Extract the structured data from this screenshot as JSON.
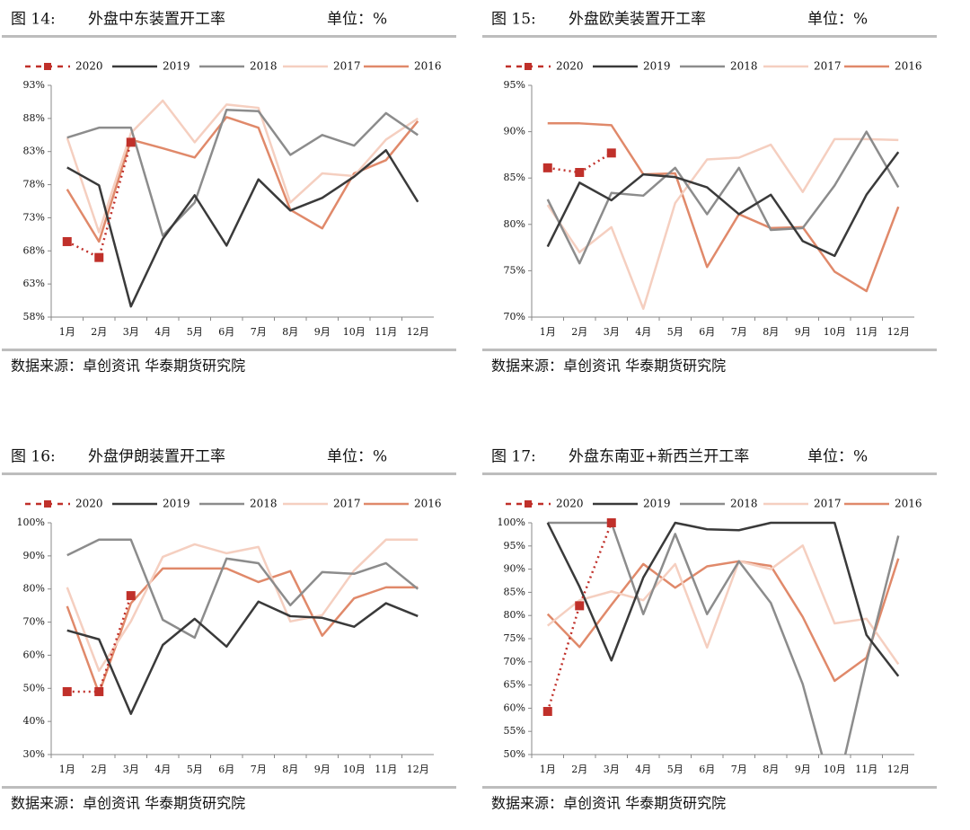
{
  "chart_data": [
    {
      "type": "line",
      "figure": "图 14:",
      "title": "外盘中东装置开工率",
      "unit": "单位：%",
      "source": "数据来源：卓创资讯 华泰期货研究院",
      "categories": [
        "1月",
        "2月",
        "3月",
        "4月",
        "5月",
        "6月",
        "7月",
        "8月",
        "9月",
        "10月",
        "11月",
        "12月"
      ],
      "ylim": [
        58,
        93
      ],
      "yticks": [
        {
          "value": 58,
          "label": "58%"
        },
        {
          "value": 63,
          "label": "63%"
        },
        {
          "value": 68,
          "label": "68%"
        },
        {
          "value": 73,
          "label": "73%"
        },
        {
          "value": 78,
          "label": "78%"
        },
        {
          "value": 83,
          "label": "83%"
        },
        {
          "value": 88,
          "label": "88%"
        },
        {
          "value": 93,
          "label": "93%"
        }
      ],
      "series": [
        {
          "name": "2020",
          "color": "#c0302a",
          "style": "dotted",
          "marker": "square",
          "values": [
            69.4,
            67.0,
            84.4,
            null,
            null,
            null,
            null,
            null,
            null,
            null,
            null,
            null
          ]
        },
        {
          "name": "2019",
          "color": "#3a3a3a",
          "values": [
            80.6,
            77.9,
            59.6,
            69.8,
            76.4,
            68.8,
            78.8,
            74.1,
            76.0,
            79.2,
            83.2,
            75.4
          ]
        },
        {
          "name": "2018",
          "color": "#8c8c8c",
          "values": [
            85.1,
            86.6,
            86.6,
            70.3,
            75.3,
            89.3,
            89.1,
            82.5,
            85.5,
            83.9,
            88.8,
            85.5
          ]
        },
        {
          "name": "2017",
          "color": "#f5cfc0",
          "values": [
            85.1,
            70.8,
            85.8,
            90.7,
            84.4,
            90.1,
            89.6,
            75.3,
            79.7,
            79.3,
            84.8,
            88.0
          ]
        },
        {
          "name": "2016",
          "color": "#e0896a",
          "values": [
            77.3,
            69.4,
            84.8,
            83.5,
            82.1,
            88.2,
            86.6,
            74.2,
            71.4,
            79.7,
            81.7,
            87.6
          ]
        }
      ]
    },
    {
      "type": "line",
      "figure": "图 15:",
      "title": "外盘欧美装置开工率",
      "unit": "单位：%",
      "source": "数据来源：卓创资讯 华泰期货研究院",
      "categories": [
        "1月",
        "2月",
        "3月",
        "4月",
        "5月",
        "6月",
        "7月",
        "8月",
        "9月",
        "10月",
        "11月",
        "12月"
      ],
      "ylim": [
        70,
        95
      ],
      "yticks": [
        {
          "value": 70,
          "label": "70%"
        },
        {
          "value": 75,
          "label": "75%"
        },
        {
          "value": 80,
          "label": "80%"
        },
        {
          "value": 85,
          "label": "85%"
        },
        {
          "value": 90,
          "label": "90%"
        },
        {
          "value": 95,
          "label": "95%"
        }
      ],
      "series": [
        {
          "name": "2020",
          "color": "#c0302a",
          "style": "dotted",
          "marker": "square",
          "values": [
            86.1,
            85.6,
            87.7,
            null,
            null,
            null,
            null,
            null,
            null,
            null,
            null,
            null
          ]
        },
        {
          "name": "2019",
          "color": "#3a3a3a",
          "values": [
            77.6,
            84.5,
            82.6,
            85.4,
            85.1,
            84.0,
            81.1,
            83.2,
            78.2,
            76.6,
            83.2,
            87.8
          ]
        },
        {
          "name": "2018",
          "color": "#8c8c8c",
          "values": [
            82.7,
            75.8,
            83.4,
            83.1,
            86.1,
            81.1,
            86.1,
            79.4,
            79.6,
            84.2,
            90.0,
            84.0
          ]
        },
        {
          "name": "2017",
          "color": "#f5cfc0",
          "values": [
            82.1,
            77.0,
            79.7,
            70.9,
            82.3,
            87.0,
            87.2,
            88.6,
            83.5,
            89.2,
            89.2,
            89.1
          ]
        },
        {
          "name": "2016",
          "color": "#e0896a",
          "values": [
            90.9,
            90.9,
            90.7,
            85.4,
            85.5,
            75.4,
            81.1,
            79.6,
            79.7,
            74.9,
            72.8,
            81.9
          ]
        }
      ]
    },
    {
      "type": "line",
      "figure": "图 16:",
      "title": "外盘伊朗装置开工率",
      "unit": "单位：%",
      "source": "数据来源：卓创资讯 华泰期货研究院",
      "categories": [
        "1月",
        "2月",
        "3月",
        "4月",
        "5月",
        "6月",
        "7月",
        "8月",
        "9月",
        "10月",
        "11月",
        "12月"
      ],
      "ylim": [
        30,
        100
      ],
      "yticks": [
        {
          "value": 30,
          "label": "30%"
        },
        {
          "value": 40,
          "label": "40%"
        },
        {
          "value": 50,
          "label": "50%"
        },
        {
          "value": 60,
          "label": "60%"
        },
        {
          "value": 70,
          "label": "70%"
        },
        {
          "value": 80,
          "label": "80%"
        },
        {
          "value": 90,
          "label": "90%"
        },
        {
          "value": 100,
          "label": "100%"
        }
      ],
      "series": [
        {
          "name": "2020",
          "color": "#c0302a",
          "style": "dotted",
          "marker": "square",
          "values": [
            49.0,
            49.0,
            78.0,
            null,
            null,
            null,
            null,
            null,
            null,
            null,
            null,
            null
          ]
        },
        {
          "name": "2019",
          "color": "#3a3a3a",
          "values": [
            67.5,
            64.8,
            42.3,
            63.1,
            71.0,
            62.6,
            76.2,
            71.8,
            71.3,
            68.6,
            75.7,
            71.8
          ]
        },
        {
          "name": "2018",
          "color": "#8c8c8c",
          "values": [
            90.2,
            94.9,
            94.9,
            70.7,
            65.3,
            89.2,
            87.8,
            75.1,
            85.1,
            84.6,
            87.8,
            80.0
          ]
        },
        {
          "name": "2017",
          "color": "#f5cfc0",
          "values": [
            80.5,
            55.3,
            70.2,
            89.7,
            93.5,
            90.8,
            92.7,
            70.2,
            72.1,
            85.6,
            94.9,
            94.9
          ]
        },
        {
          "name": "2016",
          "color": "#e0896a",
          "values": [
            74.8,
            48.5,
            75.7,
            86.2,
            86.2,
            86.2,
            82.1,
            85.4,
            65.9,
            77.2,
            80.5,
            80.5
          ]
        }
      ]
    },
    {
      "type": "line",
      "figure": "图 17:",
      "title": "外盘东南亚+新西兰开工率",
      "unit": "单位：%",
      "source": "数据来源：卓创资讯 华泰期货研究院",
      "categories": [
        "1月",
        "2月",
        "3月",
        "4月",
        "5月",
        "6月",
        "7月",
        "8月",
        "9月",
        "10月",
        "11月",
        "12月"
      ],
      "ylim": [
        50,
        100
      ],
      "yticks": [
        {
          "value": 50,
          "label": "50%"
        },
        {
          "value": 55,
          "label": "55%"
        },
        {
          "value": 60,
          "label": "60%"
        },
        {
          "value": 65,
          "label": "65%"
        },
        {
          "value": 70,
          "label": "70%"
        },
        {
          "value": 75,
          "label": "75%"
        },
        {
          "value": 80,
          "label": "80%"
        },
        {
          "value": 85,
          "label": "85%"
        },
        {
          "value": 90,
          "label": "90%"
        },
        {
          "value": 95,
          "label": "95%"
        },
        {
          "value": 100,
          "label": "100%"
        }
      ],
      "series": [
        {
          "name": "2020",
          "color": "#c0302a",
          "style": "dotted",
          "marker": "square",
          "values": [
            59.3,
            82.1,
            100,
            null,
            null,
            null,
            null,
            null,
            null,
            null,
            null,
            null
          ]
        },
        {
          "name": "2019",
          "color": "#3a3a3a",
          "values": [
            100,
            86.2,
            70.3,
            88.2,
            100,
            98.6,
            98.4,
            100,
            100,
            100,
            75.8,
            66.9
          ]
        },
        {
          "name": "2018",
          "color": "#8c8c8c",
          "values": [
            100,
            100,
            100,
            80.3,
            97.6,
            80.3,
            91.7,
            82.7,
            65.2,
            40,
            70,
            97.2
          ]
        },
        {
          "name": "2017",
          "color": "#f5cfc0",
          "values": [
            77.8,
            83.3,
            85.2,
            83.3,
            91.1,
            73.1,
            91.7,
            90.0,
            95.1,
            78.3,
            79.3,
            69.5
          ]
        },
        {
          "name": "2016",
          "color": "#e0896a",
          "values": [
            80.3,
            73.2,
            82.3,
            91.1,
            86.0,
            90.6,
            91.7,
            90.7,
            79.7,
            65.9,
            70.9,
            92.3
          ]
        }
      ]
    }
  ]
}
